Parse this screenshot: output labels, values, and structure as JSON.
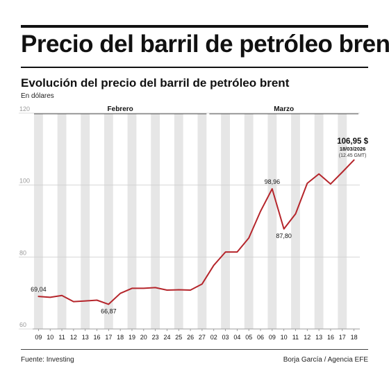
{
  "header": {
    "title": "Precio del barril de petróleo brent",
    "subtitle": "Evolución del precio del barril de petróleo brent",
    "units": "En dólares"
  },
  "footer": {
    "source": "Fuente: Investing",
    "credit": "Borja García / Agencia EFE"
  },
  "colors": {
    "line": "#b5252b",
    "band": "#e6e6e6",
    "text": "#111111",
    "muted": "#9a9a9a"
  },
  "chart_data": {
    "type": "line",
    "ylim": [
      60,
      120
    ],
    "yticks": [
      60,
      80,
      100,
      120
    ],
    "x": [
      "09",
      "10",
      "11",
      "12",
      "13",
      "16",
      "17",
      "18",
      "19",
      "20",
      "23",
      "24",
      "25",
      "26",
      "27",
      "02",
      "03",
      "04",
      "05",
      "06",
      "09",
      "10",
      "11",
      "12",
      "13",
      "16",
      "17",
      "18"
    ],
    "month_groups": [
      {
        "label": "Febrero",
        "start": 0,
        "end": 14
      },
      {
        "label": "Marzo",
        "start": 15,
        "end": 27
      }
    ],
    "series": [
      {
        "values": [
          69.04,
          68.8,
          69.3,
          67.6,
          67.8,
          68.0,
          66.87,
          69.9,
          71.3,
          71.3,
          71.5,
          70.8,
          70.9,
          70.8,
          72.5,
          77.7,
          81.4,
          81.4,
          85.3,
          92.7,
          98.96,
          87.8,
          92.0,
          100.5,
          103.1,
          100.3,
          103.6,
          106.95
        ]
      }
    ],
    "annotations": [
      {
        "index": 0,
        "label": "69,04",
        "pos": "above"
      },
      {
        "index": 6,
        "label": "66,87",
        "pos": "below"
      },
      {
        "index": 20,
        "label": "98,96",
        "pos": "above"
      },
      {
        "index": 21,
        "label": "87,80",
        "pos": "below"
      }
    ],
    "last_value": {
      "value": "106,95 $",
      "date": "18/03/2026",
      "time": "(12.45 GMT)"
    }
  }
}
